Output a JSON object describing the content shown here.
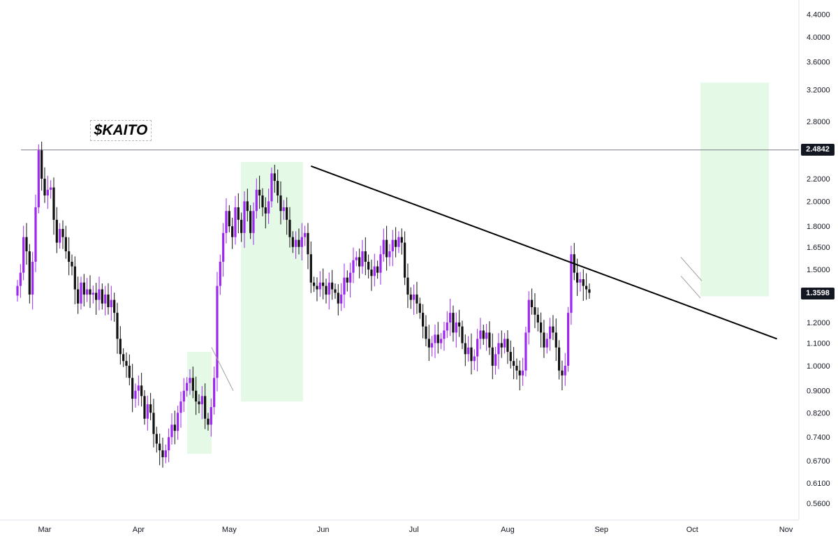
{
  "chart_data": {
    "type": "candlestick",
    "title": "$KAITO",
    "y_scale": "log",
    "ylim": [
      0.52,
      4.55
    ],
    "x_tick_labels": [
      "Mar",
      "Apr",
      "May",
      "Jun",
      "Jul",
      "Aug",
      "Sep",
      "Oct",
      "Nov"
    ],
    "y_tick_labels": [
      "4.4000",
      "4.0000",
      "3.6000",
      "3.2000",
      "2.8000",
      "2.2000",
      "2.0000",
      "1.8000",
      "1.6500",
      "1.5000",
      "1.2000",
      "1.1000",
      "1.0000",
      "0.9000",
      "0.8200",
      "0.7400",
      "0.6700",
      "0.6100",
      "0.5600"
    ],
    "horizontal_level": "2.4842",
    "current_price": "1.3598",
    "trendline": {
      "start": [
        "2025-05-28",
        2.32
      ],
      "end": [
        "2025-10-29",
        1.12
      ]
    },
    "closes": [
      1.4,
      1.48,
      1.72,
      1.62,
      1.35,
      1.55,
      1.95,
      2.48,
      2.2,
      2.05,
      2.1,
      2.12,
      1.85,
      1.68,
      1.78,
      1.72,
      1.62,
      1.55,
      1.52,
      1.38,
      1.3,
      1.42,
      1.35,
      1.38,
      1.35,
      1.36,
      1.32,
      1.38,
      1.3,
      1.35,
      1.28,
      1.32,
      1.25,
      1.12,
      1.05,
      1.02,
      1.0,
      0.95,
      0.87,
      0.9,
      0.92,
      0.88,
      0.8,
      0.85,
      0.82,
      0.75,
      0.72,
      0.7,
      0.68,
      0.7,
      0.74,
      0.78,
      0.76,
      0.82,
      0.86,
      0.9,
      0.93,
      0.95,
      0.9,
      0.86,
      0.85,
      0.88,
      0.8,
      0.78,
      0.84,
      0.95,
      1.4,
      1.55,
      1.75,
      1.92,
      1.8,
      1.72,
      1.95,
      1.85,
      1.75,
      2.0,
      1.92,
      1.75,
      1.92,
      2.1,
      2.05,
      1.95,
      1.9,
      2.0,
      2.25,
      2.18,
      2.05,
      1.92,
      1.95,
      1.85,
      1.72,
      1.65,
      1.7,
      1.65,
      1.72,
      1.75,
      1.6,
      1.42,
      1.4,
      1.38,
      1.42,
      1.4,
      1.35,
      1.42,
      1.38,
      1.36,
      1.3,
      1.35,
      1.45,
      1.42,
      1.48,
      1.56,
      1.58,
      1.52,
      1.62,
      1.55,
      1.5,
      1.46,
      1.52,
      1.48,
      1.6,
      1.7,
      1.58,
      1.62,
      1.7,
      1.65,
      1.72,
      1.68,
      1.45,
      1.35,
      1.32,
      1.35,
      1.3,
      1.25,
      1.18,
      1.12,
      1.08,
      1.1,
      1.14,
      1.1,
      1.12,
      1.16,
      1.2,
      1.25,
      1.15,
      1.2,
      1.18,
      1.1,
      1.05,
      1.08,
      1.02,
      1.04,
      1.12,
      1.16,
      1.12,
      1.15,
      1.08,
      1.0,
      1.05,
      1.1,
      1.08,
      1.12,
      1.06,
      1.02,
      1.0,
      0.98,
      0.96,
      0.98,
      1.15,
      1.32,
      1.28,
      1.24,
      1.2,
      1.15,
      1.08,
      1.12,
      1.18,
      1.15,
      1.08,
      0.98,
      0.96,
      1.0,
      1.25,
      1.6,
      1.48,
      1.42,
      1.44,
      1.4,
      1.38,
      1.36
    ]
  }
}
